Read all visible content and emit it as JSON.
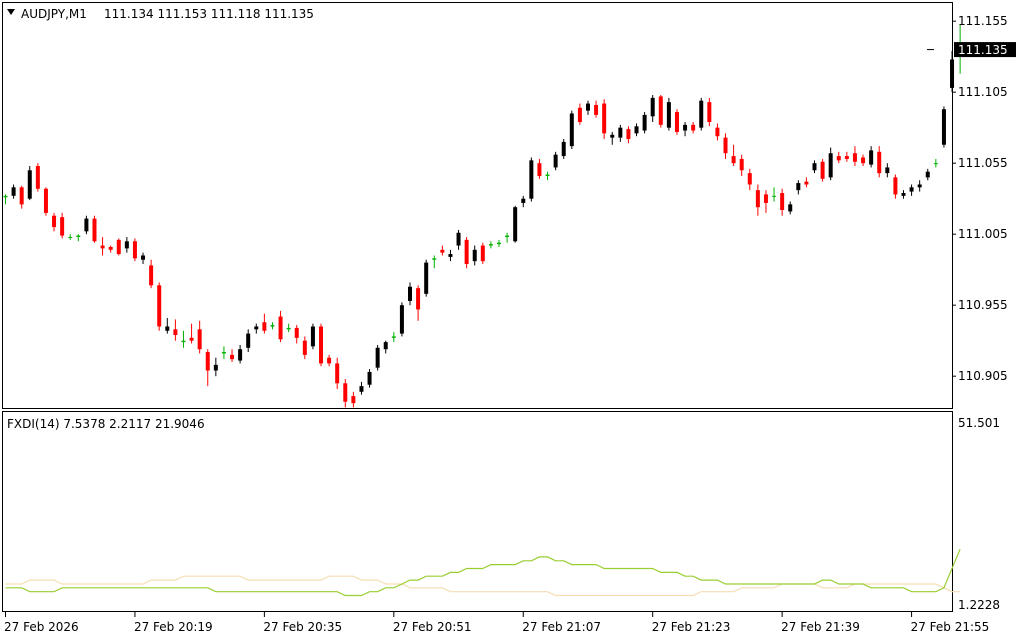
{
  "chart_data": {
    "type": "candlestick",
    "symbol_label": "AUDJPY,M1",
    "ohlc_header": "111.134 111.153 111.118 111.135",
    "current_price_label": "111.135",
    "price_ticks": [
      "111.155",
      "111.105",
      "111.055",
      "111.005",
      "110.955",
      "110.905"
    ],
    "price_tick_values": [
      111.155,
      111.105,
      111.055,
      111.005,
      110.955,
      110.905
    ],
    "ylim": [
      110.8826,
      111.1678
    ],
    "time_labels": [
      "27 Feb 2026",
      "27 Feb 20:19",
      "27 Feb 20:35",
      "27 Feb 20:51",
      "27 Feb 21:07",
      "27 Feb 21:23",
      "27 Feb 21:39",
      "27 Feb 21:55"
    ],
    "time_label_bars": [
      0,
      16,
      32,
      48,
      64,
      80,
      96,
      112
    ],
    "candles": [
      [
        111.031,
        111.033,
        111.026,
        111.032
      ],
      [
        111.032,
        111.04,
        111.03,
        111.038
      ],
      [
        111.038,
        111.039,
        111.023,
        111.026
      ],
      [
        111.03,
        111.053,
        111.029,
        111.05
      ],
      [
        111.053,
        111.055,
        111.035,
        111.037
      ],
      [
        111.037,
        111.038,
        111.018,
        111.02
      ],
      [
        111.018,
        111.02,
        111.007,
        111.01
      ],
      [
        111.017,
        111.02,
        111.002,
        111.004
      ],
      [
        111.003,
        111.005,
        111.001,
        111.003
      ],
      [
        111.003,
        111.005,
        111.0,
        111.004
      ],
      [
        111.007,
        111.018,
        111.005,
        111.016
      ],
      [
        111.016,
        111.018,
        110.999,
        111.0
      ],
      [
        110.997,
        111.003,
        110.99,
        110.995
      ],
      [
        110.996,
        110.997,
        110.992,
        110.994
      ],
      [
        111.001,
        111.002,
        110.99,
        110.991
      ],
      [
        110.995,
        111.003,
        110.992,
        111.0
      ],
      [
        111.0,
        111.002,
        110.986,
        110.988
      ],
      [
        110.987,
        110.992,
        110.984,
        110.99
      ],
      [
        110.983,
        110.987,
        110.967,
        110.969
      ],
      [
        110.969,
        110.971,
        110.937,
        110.94
      ],
      [
        110.937,
        110.946,
        110.935,
        110.94
      ],
      [
        110.938,
        110.945,
        110.93,
        110.934
      ],
      [
        110.93,
        110.937,
        110.925,
        110.929
      ],
      [
        110.932,
        110.942,
        110.928,
        110.93
      ],
      [
        110.938,
        110.944,
        110.921,
        110.924
      ],
      [
        110.922,
        110.924,
        110.898,
        110.909
      ],
      [
        110.909,
        110.918,
        110.905,
        110.913
      ],
      [
        110.921,
        110.926,
        110.917,
        110.922
      ],
      [
        110.92,
        110.924,
        110.915,
        110.917
      ],
      [
        110.916,
        110.927,
        110.914,
        110.924
      ],
      [
        110.925,
        110.938,
        110.922,
        110.935
      ],
      [
        110.938,
        110.942,
        110.935,
        110.94
      ],
      [
        110.943,
        110.949,
        110.935,
        110.937
      ],
      [
        110.94,
        110.943,
        110.938,
        110.941
      ],
      [
        110.947,
        110.951,
        110.929,
        110.931
      ],
      [
        110.939,
        110.942,
        110.936,
        110.938
      ],
      [
        110.939,
        110.941,
        110.928,
        110.932
      ],
      [
        110.93,
        110.933,
        110.917,
        110.92
      ],
      [
        110.926,
        110.942,
        110.924,
        110.94
      ],
      [
        110.94,
        110.942,
        110.912,
        110.914
      ],
      [
        110.918,
        110.92,
        110.912,
        110.914
      ],
      [
        110.914,
        110.918,
        110.896,
        110.9
      ],
      [
        110.9,
        110.903,
        110.883,
        110.887
      ],
      [
        110.891,
        110.894,
        110.883,
        110.886
      ],
      [
        110.894,
        110.901,
        110.892,
        110.898
      ],
      [
        110.899,
        110.91,
        110.897,
        110.908
      ],
      [
        110.911,
        110.927,
        110.909,
        110.925
      ],
      [
        110.924,
        110.93,
        110.921,
        110.929
      ],
      [
        110.932,
        110.936,
        110.929,
        110.933
      ],
      [
        110.935,
        110.957,
        110.933,
        110.955
      ],
      [
        110.958,
        110.971,
        110.955,
        110.968
      ],
      [
        110.967,
        110.969,
        110.944,
        110.952
      ],
      [
        110.963,
        110.987,
        110.961,
        110.985
      ],
      [
        110.987,
        110.99,
        110.981,
        110.988
      ],
      [
        110.994,
        110.997,
        110.99,
        110.992
      ],
      [
        110.989,
        110.994,
        110.986,
        110.991
      ],
      [
        110.997,
        111.008,
        110.994,
        111.006
      ],
      [
        111.001,
        111.003,
        110.981,
        110.984
      ],
      [
        110.986,
        110.997,
        110.983,
        110.994
      ],
      [
        110.997,
        110.999,
        110.984,
        110.986
      ],
      [
        110.998,
        111.0,
        110.995,
        110.997
      ],
      [
        110.998,
        111.001,
        110.996,
        110.999
      ],
      [
        111.003,
        111.006,
        110.999,
        111.004
      ],
      [
        111.0,
        111.025,
        110.999,
        111.024
      ],
      [
        111.027,
        111.032,
        111.024,
        111.03
      ],
      [
        111.03,
        111.059,
        111.028,
        111.057
      ],
      [
        111.055,
        111.058,
        111.044,
        111.046
      ],
      [
        111.046,
        111.049,
        111.043,
        111.047
      ],
      [
        111.052,
        111.063,
        111.05,
        111.061
      ],
      [
        111.06,
        111.072,
        111.058,
        111.07
      ],
      [
        111.067,
        111.092,
        111.065,
        111.09
      ],
      [
        111.094,
        111.097,
        111.082,
        111.084
      ],
      [
        111.092,
        111.099,
        111.089,
        111.097
      ],
      [
        111.096,
        111.099,
        111.087,
        111.089
      ],
      [
        111.097,
        111.1,
        111.072,
        111.076
      ],
      [
        111.073,
        111.077,
        111.068,
        111.075
      ],
      [
        111.073,
        111.082,
        111.07,
        111.08
      ],
      [
        111.079,
        111.081,
        111.069,
        111.072
      ],
      [
        111.076,
        111.083,
        111.074,
        111.081
      ],
      [
        111.078,
        111.091,
        111.076,
        111.089
      ],
      [
        111.088,
        111.103,
        111.084,
        111.101
      ],
      [
        111.102,
        111.103,
        111.08,
        111.082
      ],
      [
        111.08,
        111.101,
        111.078,
        111.098
      ],
      [
        111.091,
        111.093,
        111.075,
        111.077
      ],
      [
        111.078,
        111.084,
        111.074,
        111.082
      ],
      [
        111.082,
        111.084,
        111.076,
        111.078
      ],
      [
        111.08,
        111.101,
        111.078,
        111.099
      ],
      [
        111.098,
        111.101,
        111.081,
        111.084
      ],
      [
        111.08,
        111.083,
        111.071,
        111.074
      ],
      [
        111.073,
        111.076,
        111.058,
        111.062
      ],
      [
        111.06,
        111.068,
        111.053,
        111.055
      ],
      [
        111.058,
        111.061,
        111.046,
        111.05
      ],
      [
        111.048,
        111.051,
        111.036,
        111.04
      ],
      [
        111.036,
        111.04,
        111.018,
        111.024
      ],
      [
        111.033,
        111.036,
        111.02,
        111.027
      ],
      [
        111.032,
        111.038,
        111.028,
        111.032
      ],
      [
        111.034,
        111.037,
        111.018,
        111.022
      ],
      [
        111.021,
        111.028,
        111.019,
        111.026
      ],
      [
        111.036,
        111.043,
        111.033,
        111.041
      ],
      [
        111.042,
        111.045,
        111.038,
        111.04
      ],
      [
        111.05,
        111.057,
        111.048,
        111.055
      ],
      [
        111.056,
        111.058,
        111.042,
        111.044
      ],
      [
        111.045,
        111.066,
        111.043,
        111.062
      ],
      [
        111.06,
        111.063,
        111.055,
        111.057
      ],
      [
        111.06,
        111.063,
        111.056,
        111.058
      ],
      [
        111.062,
        111.067,
        111.053,
        111.056
      ],
      [
        111.059,
        111.061,
        111.053,
        111.055
      ],
      [
        111.054,
        111.067,
        111.052,
        111.064
      ],
      [
        111.063,
        111.067,
        111.045,
        111.048
      ],
      [
        111.048,
        111.055,
        111.045,
        111.052
      ],
      [
        111.045,
        111.047,
        111.03,
        111.033
      ],
      [
        111.032,
        111.036,
        111.03,
        111.034
      ],
      [
        111.035,
        111.04,
        111.032,
        111.038
      ],
      [
        111.038,
        111.043,
        111.035,
        111.04
      ],
      [
        111.045,
        111.051,
        111.043,
        111.049
      ],
      [
        111.055,
        111.058,
        111.052,
        111.055
      ],
      [
        111.068,
        111.095,
        111.066,
        111.093
      ],
      [
        111.108,
        111.134,
        111.105,
        111.128
      ],
      [
        111.134,
        111.153,
        111.118,
        111.135
      ]
    ],
    "indicator": {
      "label": "FXDI(14) 7.5378 2.2117 21.9046",
      "top_tick": "51.501",
      "bottom_tick": "1.2228",
      "ylim": [
        0,
        51.501
      ],
      "line_colors": [
        "#9ACD32",
        "#F5DEB3"
      ],
      "green_line": [
        6,
        6,
        6,
        5,
        5,
        5,
        5,
        6,
        6,
        6,
        6,
        6,
        6,
        6,
        6,
        6,
        6,
        6,
        6,
        6,
        6,
        6,
        6,
        6,
        6,
        6,
        5,
        5,
        5,
        5,
        5,
        5,
        5,
        5,
        5,
        5,
        5,
        5,
        5,
        5,
        5,
        5,
        4,
        4,
        4,
        5,
        5,
        6,
        6,
        7,
        8,
        8,
        9,
        9,
        9,
        10,
        10,
        11,
        11,
        11,
        12,
        12,
        12,
        12,
        13,
        13,
        14,
        14,
        13,
        13,
        12,
        12,
        12,
        12,
        11,
        11,
        11,
        11,
        11,
        11,
        11,
        10,
        10,
        10,
        9,
        9,
        8,
        8,
        8,
        7,
        7,
        7,
        7,
        7,
        7,
        7,
        7,
        7,
        7,
        7,
        7,
        8,
        8,
        7,
        7,
        7,
        7,
        6,
        6,
        6,
        6,
        6,
        5,
        5,
        5,
        5,
        6,
        11,
        16
      ],
      "tan_line": [
        7,
        7,
        7,
        8,
        8,
        8,
        8,
        7,
        7,
        7,
        7,
        7,
        7,
        7,
        7,
        7,
        7,
        7,
        8,
        8,
        8,
        8,
        9,
        9,
        9,
        9,
        9,
        9,
        9,
        9,
        8,
        8,
        8,
        8,
        8,
        8,
        8,
        8,
        8,
        8,
        9,
        9,
        9,
        9,
        8,
        8,
        8,
        7,
        7,
        7,
        6,
        6,
        6,
        6,
        6,
        5,
        5,
        5,
        5,
        5,
        5,
        5,
        5,
        5,
        5,
        5,
        5,
        5,
        4,
        4,
        4,
        4,
        4,
        4,
        4,
        4,
        4,
        4,
        4,
        4,
        4,
        4,
        4,
        4,
        4,
        4,
        5,
        5,
        5,
        5,
        5,
        6,
        6,
        6,
        6,
        6,
        7,
        7,
        7,
        7,
        7,
        6,
        6,
        6,
        6,
        7,
        7,
        7,
        7,
        7,
        7,
        7,
        7,
        7,
        7,
        7,
        6,
        5,
        5
      ]
    },
    "colors": {
      "bull": "#000000",
      "bear": "#FF0000",
      "doji": "#00B000",
      "frame": "#000000",
      "price_tag_bg": "#000000",
      "price_tag_fg": "#FFFFFF"
    },
    "grid": false
  }
}
